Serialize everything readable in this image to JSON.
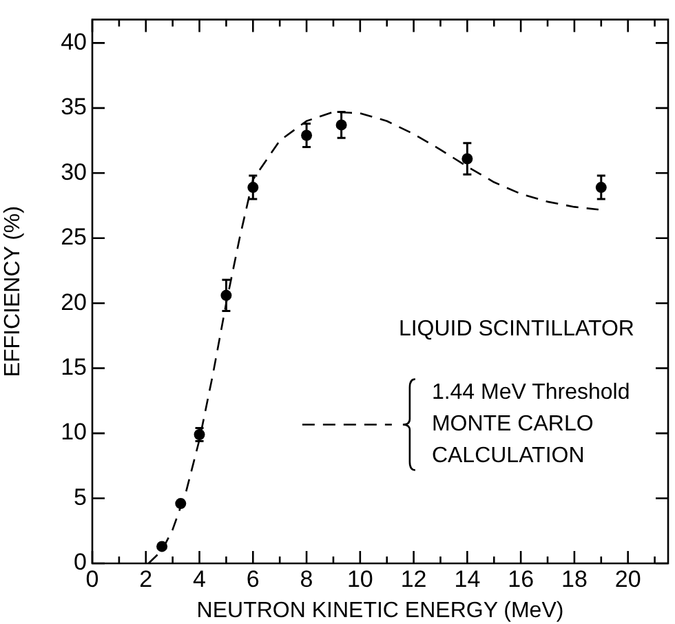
{
  "chart_data": {
    "type": "scatter",
    "xlabel": "NEUTRON KINETIC ENERGY (MeV)",
    "ylabel": "EFFICIENCY (%)",
    "annotations": [
      "LIQUID SCINTILLATOR"
    ],
    "xlim": [
      0,
      21.5
    ],
    "ylim": [
      0,
      41.8
    ],
    "xticks": [
      0,
      {
        "value": 1,
        "label": null
      },
      2,
      {
        "value": 3,
        "label": null
      },
      4,
      {
        "value": 5,
        "label": null
      },
      6,
      {
        "value": 7,
        "label": null
      },
      8,
      {
        "value": 9,
        "label": null
      },
      10,
      {
        "value": 11,
        "label": null
      },
      12,
      {
        "value": 13,
        "label": null
      },
      14,
      {
        "value": 15,
        "label": null
      },
      16,
      {
        "value": 17,
        "label": null
      },
      18,
      {
        "value": 19,
        "label": null
      },
      20,
      {
        "value": 21,
        "label": null
      }
    ],
    "yticks": [
      0,
      5,
      10,
      15,
      20,
      25,
      30,
      35,
      40
    ],
    "grid": false,
    "legend": "right",
    "series": [
      {
        "color": "#000000",
        "marker": "circle",
        "x": [
          2.6,
          3.3,
          4.0,
          5.0,
          6.0,
          8.0,
          9.3,
          14.0,
          19.0
        ],
        "values": [
          1.3,
          4.6,
          9.9,
          20.6,
          28.9,
          32.9,
          33.7,
          31.1,
          28.9
        ],
        "errors": [
          null,
          null,
          0.5,
          1.2,
          0.9,
          0.9,
          1.0,
          1.2,
          0.9
        ]
      },
      {
        "type": "line",
        "name": "1.44 MeV Threshold\nMONTE CARLO\nCALCULATION",
        "color": "#000000",
        "marker": "none",
        "line_style": "dashed",
        "x": [
          2.1,
          2.6,
          3.0,
          3.5,
          4.0,
          4.5,
          5.0,
          5.5,
          6.0,
          7.0,
          8.0,
          9.0,
          10.0,
          11.0,
          12.0,
          13.0,
          14.0,
          15.0,
          16.0,
          17.0,
          18.0,
          18.9
        ],
        "values": [
          0,
          1.0,
          2.6,
          5.5,
          9.5,
          14.5,
          20,
          25,
          29.5,
          32.5,
          34,
          34.7,
          34.6,
          34,
          33,
          31.8,
          30.5,
          29.3,
          28.4,
          27.8,
          27.4,
          27.2
        ]
      }
    ]
  }
}
